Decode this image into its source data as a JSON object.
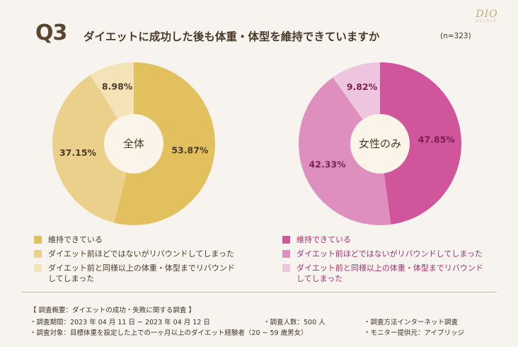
{
  "header": {
    "question_number": "Q3",
    "title": "ダイエットに成功した後も体重・体型を維持できていますか",
    "sample": "(n=323)",
    "logo_mark": "DIO",
    "logo_sub": "CLINIC"
  },
  "chart_data": [
    {
      "type": "pie",
      "title": "全体",
      "categories": [
        "維持できている",
        "ダイエット前ほどではないがリバウンドしてしまった",
        "ダイエット前と同様以上の体重・体型までリバウンドしてしまった"
      ],
      "values": [
        53.87,
        37.15,
        8.98
      ],
      "value_labels": [
        "53.87%",
        "37.15%",
        "8.98%"
      ],
      "colors": [
        "#e3c05e",
        "#ebd08b",
        "#f3e3b6"
      ],
      "label_color": "#4a3a28"
    },
    {
      "type": "pie",
      "title": "女性のみ",
      "categories": [
        "維持できている",
        "ダイエット前ほどではないがリバウンドしてしまった",
        "ダイエット前と同様以上の体重・体型までリバウンドしてしまった"
      ],
      "values": [
        47.85,
        42.33,
        9.82
      ],
      "value_labels": [
        "47.85%",
        "42.33%",
        "9.82%"
      ],
      "colors": [
        "#d0559b",
        "#de8fbd",
        "#eec5de"
      ],
      "label_color": "#7a1f55"
    }
  ],
  "legend_left": [
    {
      "label": "維持できている",
      "color": "#e3c05e"
    },
    {
      "label": "ダイエット前ほどではないがリバウンドしてしまった",
      "color": "#ebd08b"
    },
    {
      "label": "ダイエット前と同様以上の体重・体型までリバウンド\nしてしまった",
      "color": "#f3e3b6"
    }
  ],
  "legend_right": [
    {
      "label": "維持できている",
      "color": "#d0559b"
    },
    {
      "label": "ダイエット前ほどではないがリバウンドしてしまった",
      "color": "#de8fbd"
    },
    {
      "label": "ダイエット前と同様以上の体重・体型までリバウンド\nしてしまった",
      "color": "#eec5de"
    }
  ],
  "survey": {
    "heading": "【 調査概要：ダイエットの成功・失敗に関する調査 】",
    "period": "・調査期間：2023 年 04 月 11 日 ~ 2023 年 04 月 12 日",
    "respondents": "・調査人数：500 人",
    "method": "・調査方法インターネット調査",
    "target": "・調査対象：目標体重を設定した上での一ヶ月以上のダイエット経験者（20 ~ 59 歳男女）",
    "provider": "・モニター提供元：アイブリッジ"
  }
}
